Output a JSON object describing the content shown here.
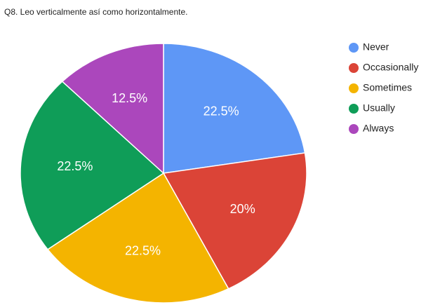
{
  "chart_data": {
    "type": "pie",
    "title": "Q8. Leo verticalmente así como horizontalmente.",
    "categories": [
      "Never",
      "Occasionally",
      "Sometimes",
      "Usually",
      "Always"
    ],
    "values": [
      22.5,
      20,
      22.5,
      22.5,
      12.5
    ],
    "value_labels": [
      "22.5%",
      "20%",
      "22.5%",
      "22.5%",
      "12.5%"
    ],
    "colors": [
      "#5e97f6",
      "#db4437",
      "#f4b400",
      "#0f9d58",
      "#ab47bc"
    ],
    "legend": "right"
  }
}
